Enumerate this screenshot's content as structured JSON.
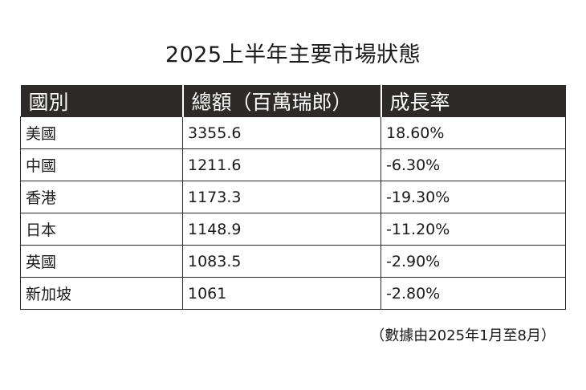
{
  "title": "2025上半年主要市場狀態",
  "table": {
    "headers": [
      "國別",
      "總額（百萬瑞郎）",
      "成長率"
    ],
    "rows": [
      [
        "美國",
        "3355.6",
        "18.60%"
      ],
      [
        "中國",
        "1211.6",
        "-6.30%"
      ],
      [
        "香港",
        "1173.3",
        "-19.30%"
      ],
      [
        "日本",
        "1148.9",
        "-11.20%"
      ],
      [
        "英國",
        "1083.5",
        "-2.90%"
      ],
      [
        "新加坡",
        "1061",
        "-2.80%"
      ]
    ]
  },
  "note": "（數據由2025年1月至8月）",
  "colors": {
    "header_bg": "#2d2a29",
    "header_text": "#ffffff",
    "border": "#2d2a29"
  }
}
